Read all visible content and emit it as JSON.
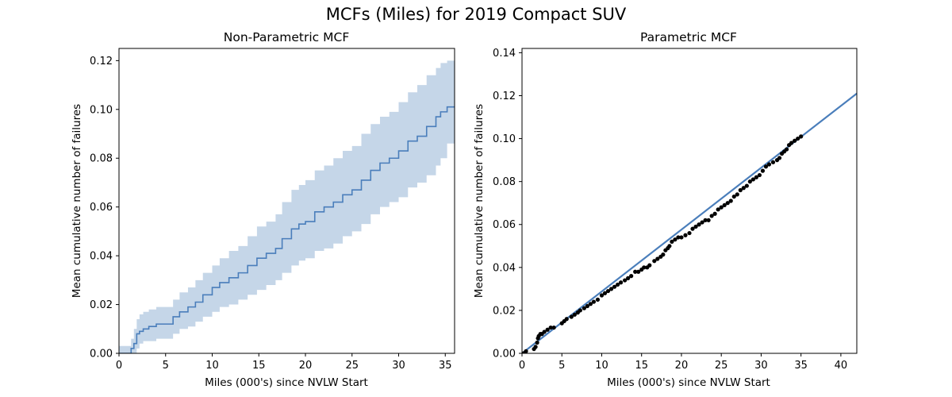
{
  "figure": {
    "title": "MCFs (Miles) for 2019 Compact SUV"
  },
  "chart_data": [
    {
      "type": "line",
      "title": "Non-Parametric MCF",
      "xlabel": "Miles (000's) since NVLW Start",
      "ylabel": "Mean cumulative number of failures",
      "xlim": [
        0,
        36
      ],
      "ylim": [
        0,
        0.125
      ],
      "xticks": [
        "0",
        "5",
        "10",
        "15",
        "20",
        "25",
        "30",
        "35"
      ],
      "yticks": [
        "0.00",
        "0.02",
        "0.04",
        "0.06",
        "0.08",
        "0.10",
        "0.12"
      ],
      "grid": false,
      "step": true,
      "line_color": "#4a7ebb",
      "band_color": "#c5d6e8",
      "series": [
        {
          "x": [
            0,
            1.3,
            1.6,
            1.9,
            2.2,
            2.6,
            3.2,
            4.0,
            5.0,
            5.8,
            6.5,
            7.4,
            8.2,
            9.0,
            10.0,
            10.8,
            11.8,
            12.8,
            13.8,
            14.8,
            15.8,
            16.8,
            17.5,
            18.5,
            19.3,
            20.0,
            21.0,
            22.0,
            23.0,
            24.0,
            25.0,
            26.0,
            27.0,
            28.0,
            29.0,
            30.0,
            31.0,
            32.0,
            33.0,
            34.0,
            34.5,
            35.2,
            36.0
          ],
          "y": [
            0.0,
            0.002,
            0.004,
            0.008,
            0.009,
            0.01,
            0.011,
            0.012,
            0.012,
            0.015,
            0.017,
            0.019,
            0.021,
            0.024,
            0.027,
            0.029,
            0.031,
            0.033,
            0.036,
            0.039,
            0.041,
            0.043,
            0.047,
            0.051,
            0.053,
            0.054,
            0.058,
            0.06,
            0.062,
            0.065,
            0.067,
            0.071,
            0.075,
            0.078,
            0.08,
            0.083,
            0.087,
            0.089,
            0.093,
            0.097,
            0.099,
            0.101,
            0.101
          ]
        }
      ],
      "bands": [
        {
          "x": [
            0,
            1.3,
            1.6,
            1.9,
            2.2,
            2.6,
            3.2,
            4.0,
            5.0,
            5.8,
            6.5,
            7.4,
            8.2,
            9.0,
            10.0,
            10.8,
            11.8,
            12.8,
            13.8,
            14.8,
            15.8,
            16.8,
            17.5,
            18.5,
            19.3,
            20.0,
            21.0,
            22.0,
            23.0,
            24.0,
            25.0,
            26.0,
            27.0,
            28.0,
            29.0,
            30.0,
            31.0,
            32.0,
            33.0,
            34.0,
            34.5,
            35.2,
            36.0
          ],
          "lower": [
            0.0,
            0.0,
            0.0,
            0.002,
            0.004,
            0.005,
            0.005,
            0.006,
            0.006,
            0.008,
            0.01,
            0.011,
            0.013,
            0.015,
            0.017,
            0.019,
            0.02,
            0.022,
            0.024,
            0.026,
            0.028,
            0.03,
            0.033,
            0.036,
            0.038,
            0.039,
            0.042,
            0.043,
            0.045,
            0.048,
            0.05,
            0.053,
            0.057,
            0.06,
            0.062,
            0.064,
            0.068,
            0.07,
            0.073,
            0.077,
            0.08,
            0.086,
            0.086
          ],
          "upper": [
            0.003,
            0.006,
            0.01,
            0.014,
            0.016,
            0.017,
            0.018,
            0.019,
            0.019,
            0.022,
            0.025,
            0.027,
            0.03,
            0.033,
            0.036,
            0.039,
            0.042,
            0.044,
            0.048,
            0.052,
            0.054,
            0.057,
            0.062,
            0.067,
            0.069,
            0.071,
            0.075,
            0.077,
            0.08,
            0.083,
            0.085,
            0.09,
            0.094,
            0.097,
            0.099,
            0.103,
            0.107,
            0.11,
            0.114,
            0.117,
            0.119,
            0.12,
            0.12
          ]
        }
      ]
    },
    {
      "type": "scatter",
      "title": "Parametric MCF",
      "xlabel": "Miles (000's) since NVLW Start",
      "ylabel": "Mean cumulative number of failures",
      "xlim": [
        0,
        42
      ],
      "ylim": [
        0,
        0.142
      ],
      "xticks": [
        "0",
        "5",
        "10",
        "15",
        "20",
        "25",
        "30",
        "35",
        "40"
      ],
      "yticks": [
        "0.00",
        "0.02",
        "0.04",
        "0.06",
        "0.08",
        "0.10",
        "0.12",
        "0.14"
      ],
      "grid": false,
      "fit_line": {
        "x": [
          0,
          42
        ],
        "y": [
          0,
          0.121
        ],
        "color": "#4a7ebb"
      },
      "point_color": "#000000",
      "series": [
        {
          "x": [
            0.2,
            0.5,
            1.5,
            1.7,
            1.9,
            2.0,
            2.1,
            2.3,
            2.5,
            2.8,
            3.2,
            3.6,
            4.0,
            5.0,
            5.3,
            5.6,
            6.2,
            6.6,
            7.0,
            7.3,
            7.8,
            8.2,
            8.6,
            9.0,
            9.5,
            10.0,
            10.4,
            10.8,
            11.2,
            11.6,
            12.0,
            12.4,
            12.9,
            13.3,
            13.7,
            14.2,
            14.6,
            15.0,
            15.3,
            15.7,
            16.0,
            16.6,
            17.0,
            17.4,
            17.7,
            18.0,
            18.3,
            18.5,
            18.8,
            19.2,
            19.6,
            20.0,
            20.5,
            21.0,
            21.4,
            21.8,
            22.2,
            22.6,
            23.0,
            23.4,
            23.8,
            24.2,
            24.6,
            25.0,
            25.4,
            25.8,
            26.2,
            26.6,
            27.0,
            27.4,
            27.8,
            28.2,
            28.6,
            29.0,
            29.4,
            29.8,
            30.2,
            30.6,
            31.0,
            31.5,
            32.0,
            32.3,
            32.6,
            32.9,
            33.2,
            33.5,
            33.8,
            34.2,
            34.6,
            35.0
          ],
          "y": [
            0.0,
            0.001,
            0.002,
            0.003,
            0.005,
            0.007,
            0.008,
            0.009,
            0.009,
            0.01,
            0.011,
            0.012,
            0.012,
            0.014,
            0.015,
            0.016,
            0.017,
            0.018,
            0.019,
            0.02,
            0.021,
            0.022,
            0.023,
            0.024,
            0.025,
            0.027,
            0.028,
            0.029,
            0.03,
            0.031,
            0.032,
            0.033,
            0.034,
            0.035,
            0.036,
            0.038,
            0.038,
            0.039,
            0.04,
            0.04,
            0.041,
            0.043,
            0.044,
            0.045,
            0.046,
            0.048,
            0.049,
            0.05,
            0.052,
            0.053,
            0.054,
            0.054,
            0.055,
            0.056,
            0.058,
            0.059,
            0.06,
            0.061,
            0.062,
            0.062,
            0.064,
            0.065,
            0.067,
            0.068,
            0.069,
            0.07,
            0.071,
            0.073,
            0.074,
            0.076,
            0.077,
            0.078,
            0.08,
            0.081,
            0.082,
            0.083,
            0.085,
            0.087,
            0.088,
            0.089,
            0.09,
            0.091,
            0.093,
            0.094,
            0.095,
            0.097,
            0.098,
            0.099,
            0.1,
            0.101
          ]
        }
      ]
    }
  ]
}
